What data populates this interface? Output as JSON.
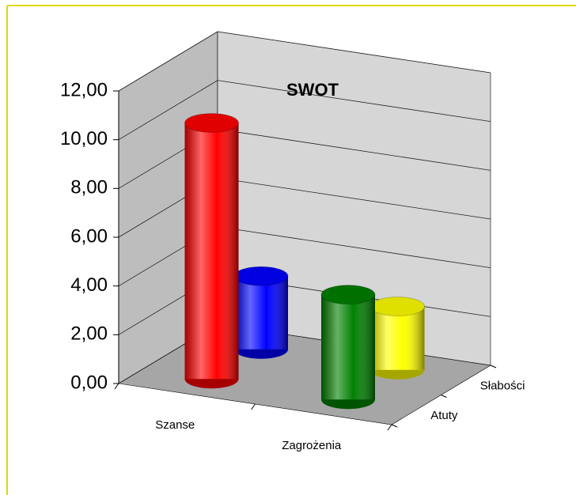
{
  "chart_data": {
    "type": "bar3d",
    "title": "SWOT",
    "categories": [
      "Szanse",
      "Zagrożenia"
    ],
    "series": [
      {
        "name": "Atuty",
        "colors": [
          "#ff0000",
          "#008000"
        ],
        "values": [
          10.5,
          4.3
        ]
      },
      {
        "name": "Słabości",
        "colors": [
          "#0000ff",
          "#ffff00"
        ],
        "values": [
          3.0,
          2.6
        ]
      }
    ],
    "ylim": [
      0,
      12
    ],
    "yticks": [
      {
        "value": 0,
        "label": "0,00"
      },
      {
        "value": 2,
        "label": "2,00"
      },
      {
        "value": 4,
        "label": "4,00"
      },
      {
        "value": 6,
        "label": "6,00"
      },
      {
        "value": 8,
        "label": "8,00"
      },
      {
        "value": 10,
        "label": "10,00"
      },
      {
        "value": 12,
        "label": "12,00"
      }
    ],
    "grid": true
  }
}
